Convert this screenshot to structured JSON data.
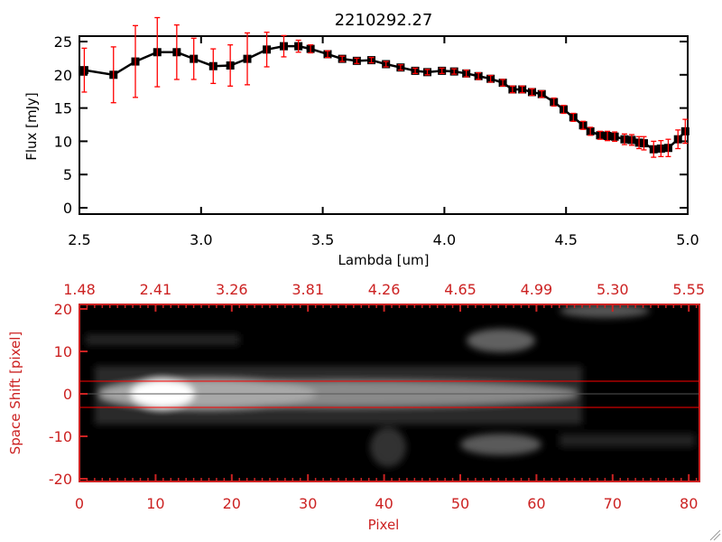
{
  "chart_data": [
    {
      "type": "line",
      "title": "2210292.27",
      "xlabel": "Lambda [um]",
      "ylabel": "Flux [mJy]",
      "xlim": [
        2.5,
        5.0
      ],
      "ylim": [
        -1,
        26
      ],
      "xticks": [
        "2.5",
        "3.0",
        "3.5",
        "4.0",
        "4.5",
        "5.0"
      ],
      "yticks": [
        "0",
        "5",
        "10",
        "15",
        "20",
        "25"
      ],
      "grid": false,
      "marker": "square",
      "line_color": "#000000",
      "errorbar_color": "#ff0000",
      "x": [
        2.52,
        2.64,
        2.73,
        2.82,
        2.9,
        2.97,
        3.05,
        3.12,
        3.19,
        3.27,
        3.34,
        3.4,
        3.45,
        3.52,
        3.58,
        3.64,
        3.7,
        3.76,
        3.82,
        3.88,
        3.93,
        3.99,
        4.04,
        4.09,
        4.14,
        4.19,
        4.24,
        4.28,
        4.32,
        4.36,
        4.4,
        4.45,
        4.49,
        4.53,
        4.57,
        4.6,
        4.64,
        4.67,
        4.7,
        4.74,
        4.77,
        4.8,
        4.82,
        4.86,
        4.89,
        4.92,
        4.96,
        4.99
      ],
      "y": [
        20.7,
        20.0,
        22.0,
        23.4,
        23.4,
        22.4,
        21.3,
        21.4,
        22.4,
        23.8,
        24.3,
        24.3,
        23.9,
        23.1,
        22.4,
        22.1,
        22.2,
        21.6,
        21.1,
        20.6,
        20.4,
        20.6,
        20.5,
        20.2,
        19.8,
        19.4,
        18.8,
        17.8,
        17.8,
        17.4,
        17.1,
        15.9,
        14.8,
        13.6,
        12.4,
        11.5,
        10.9,
        10.8,
        10.7,
        10.3,
        10.2,
        9.8,
        9.7,
        8.8,
        8.9,
        9.0,
        10.3,
        11.5
      ],
      "yerr": [
        3.3,
        4.2,
        5.4,
        5.2,
        4.1,
        3.1,
        2.6,
        3.1,
        3.9,
        2.6,
        1.6,
        0.9,
        0.6,
        0.5,
        0.4,
        0.4,
        0.4,
        0.4,
        0.4,
        0.4,
        0.4,
        0.4,
        0.4,
        0.5,
        0.5,
        0.5,
        0.5,
        0.5,
        0.5,
        0.5,
        0.5,
        0.6,
        0.6,
        0.6,
        0.6,
        0.6,
        0.6,
        0.7,
        0.7,
        0.8,
        0.8,
        0.9,
        1.0,
        1.2,
        1.2,
        1.3,
        1.4,
        1.8
      ]
    },
    {
      "type": "heatmap",
      "xlabel": "Pixel",
      "ylabel": "Space Shift [pixel]",
      "xlim": [
        0,
        81
      ],
      "ylim": [
        -21,
        21
      ],
      "xticks": [
        "0",
        "10",
        "20",
        "30",
        "40",
        "50",
        "60",
        "70",
        "80"
      ],
      "yticks": [
        "-20",
        "-10",
        "0",
        "10",
        "20"
      ],
      "top_xticks": [
        "1.48",
        "2.41",
        "3.26",
        "3.81",
        "4.26",
        "4.65",
        "4.99",
        "5.30",
        "5.55"
      ],
      "colormap": "grayscale",
      "axis_color": "#cc2222",
      "extraction_aperture": [
        -3,
        3
      ],
      "aperture_line_color": "#ff0000",
      "center_line": 0
    }
  ]
}
